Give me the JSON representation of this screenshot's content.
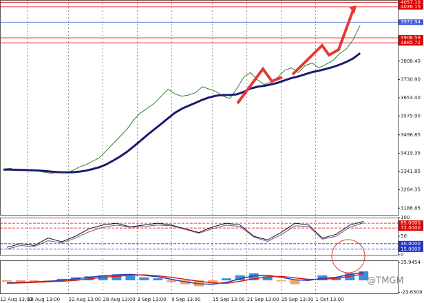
{
  "chart_data": [
    {
      "type": "line",
      "xlim": [
        0,
        58
      ],
      "xticks": [
        {
          "value": 0,
          "label": "12 Aug 13:00"
        },
        {
          "value": 4,
          "label": "18 Aug 13:00"
        },
        {
          "value": 10,
          "label": "22 Aug 13:00"
        },
        {
          "value": 15,
          "label": "28 Aug 13:00"
        },
        {
          "value": 20,
          "label": "3 Sep 13:00"
        },
        {
          "value": 25,
          "label": "9 Sep 13:00"
        },
        {
          "value": 31,
          "label": "15 Sep 13:00"
        },
        {
          "value": 36,
          "label": "21 Sep 13:00"
        },
        {
          "value": 41,
          "label": "25 Sep 13:00"
        },
        {
          "value": 46,
          "label": "1 Oct 13:00"
        }
      ],
      "ylim": [
        3158.5,
        4066.8
      ],
      "yticks": [
        {
          "value": 3808.4,
          "label": "3808.40"
        },
        {
          "value": 3730.9,
          "label": "3730.90"
        },
        {
          "value": 3653.4,
          "label": "3653.40"
        },
        {
          "value": 3575.9,
          "label": "3575.90"
        },
        {
          "value": 3496.85,
          "label": "3496.85"
        },
        {
          "value": 3419.35,
          "label": "3419.35"
        },
        {
          "value": 3341.85,
          "label": "3341.85"
        },
        {
          "value": 3264.35,
          "label": "3264.35"
        },
        {
          "value": 3186.85,
          "label": "3186.85"
        }
      ],
      "levels": [
        {
          "value": 4057.1,
          "label": "4057.10",
          "color": "#e00000"
        },
        {
          "value": 4038.15,
          "label": "4038.15",
          "color": "#e00000"
        },
        {
          "value": 3972.94,
          "label": "3972.94",
          "color": "#3b5bdb"
        },
        {
          "value": 3906.59,
          "label": "3906.59",
          "color": "#e00000"
        },
        {
          "value": 3885.72,
          "label": "3885.72",
          "color": "#e00000"
        }
      ],
      "series": [
        {
          "type": "line",
          "color": "#2e7d32",
          "width": 1,
          "values": [
            3352,
            3355,
            3348,
            3350,
            3346,
            3344,
            3338,
            3334,
            3340,
            3336,
            3345,
            3360,
            3370,
            3385,
            3400,
            3430,
            3460,
            3490,
            3520,
            3560,
            3590,
            3610,
            3630,
            3660,
            3690,
            3670,
            3660,
            3665,
            3675,
            3700,
            3690,
            3680,
            3660,
            3650,
            3690,
            3740,
            3760,
            3730,
            3710,
            3720,
            3740,
            3770,
            3780,
            3760,
            3790,
            3800,
            3780,
            3795,
            3810,
            3840,
            3860,
            3900,
            3960
          ]
        },
        {
          "type": "line",
          "color": "#1a1a6e",
          "width": 3,
          "values": [
            3350,
            3350,
            3349,
            3348,
            3347,
            3346,
            3344,
            3341,
            3339,
            3338,
            3338,
            3341,
            3345,
            3352,
            3360,
            3372,
            3388,
            3405,
            3425,
            3448,
            3472,
            3497,
            3520,
            3543,
            3567,
            3590,
            3607,
            3620,
            3632,
            3645,
            3655,
            3662,
            3665,
            3665,
            3668,
            3678,
            3692,
            3700,
            3704,
            3710,
            3717,
            3727,
            3737,
            3744,
            3753,
            3762,
            3768,
            3775,
            3783,
            3793,
            3805,
            3820,
            3842
          ]
        }
      ]
    },
    {
      "type": "line",
      "xlim": [
        0,
        29
      ],
      "ylim": [
        0,
        100
      ],
      "yticks": [
        0,
        50,
        100
      ],
      "levels": [
        {
          "value": 85,
          "label": "85.0000",
          "color": "#e00000"
        },
        {
          "value": 72,
          "label": "72.0000",
          "color": "#e00000"
        },
        {
          "value": 30,
          "label": "30.0000",
          "color": "#2233cc"
        },
        {
          "value": 15,
          "label": "15.0000",
          "color": "#2233cc"
        }
      ],
      "series": [
        {
          "type": "line",
          "color": "#111111",
          "width": 1,
          "values": [
            20,
            30,
            25,
            45,
            35,
            50,
            70,
            80,
            85,
            75,
            80,
            85,
            80,
            70,
            60,
            75,
            85,
            80,
            50,
            40,
            60,
            85,
            80,
            45,
            55,
            80,
            90
          ]
        },
        {
          "type": "line",
          "color": "#7a4a9a",
          "width": 1,
          "values": [
            15,
            25,
            22,
            38,
            32,
            45,
            62,
            74,
            80,
            74,
            76,
            80,
            78,
            68,
            58,
            70,
            80,
            76,
            48,
            36,
            54,
            78,
            76,
            42,
            50,
            74,
            86
          ]
        }
      ]
    },
    {
      "type": "bar",
      "xlim": [
        0,
        29
      ],
      "ylim": [
        -26,
        40
      ],
      "yticks": [
        35.9454,
        -23.6509
      ],
      "series": [
        {
          "type": "bar",
          "color": "#3d8fd6",
          "negative_color": "#f4a36b",
          "values": [
            -3,
            -5,
            -2,
            -1,
            3,
            6,
            8,
            10,
            12,
            9,
            6,
            4,
            -4,
            -8,
            -12,
            -6,
            4,
            10,
            14,
            8,
            -2,
            -8,
            2,
            10,
            5,
            14,
            18
          ]
        },
        {
          "type": "line",
          "color": "#1f3fbf",
          "width": 1.5,
          "values": [
            -5,
            -4,
            -3,
            -2,
            0,
            3,
            6,
            9,
            11,
            12,
            10,
            7,
            2,
            -3,
            -7,
            -8,
            -4,
            3,
            9,
            10,
            6,
            1,
            0,
            4,
            6,
            12,
            16
          ]
        },
        {
          "type": "line",
          "color": "#d81e1e",
          "width": 1.5,
          "values": [
            -6,
            -5,
            -4,
            -3,
            -2,
            0,
            3,
            6,
            8,
            10,
            11,
            9,
            6,
            2,
            -2,
            -5,
            -6,
            -2,
            3,
            7,
            8,
            5,
            2,
            2,
            4,
            8,
            13
          ]
        }
      ]
    }
  ],
  "watermark": "@TMGM"
}
